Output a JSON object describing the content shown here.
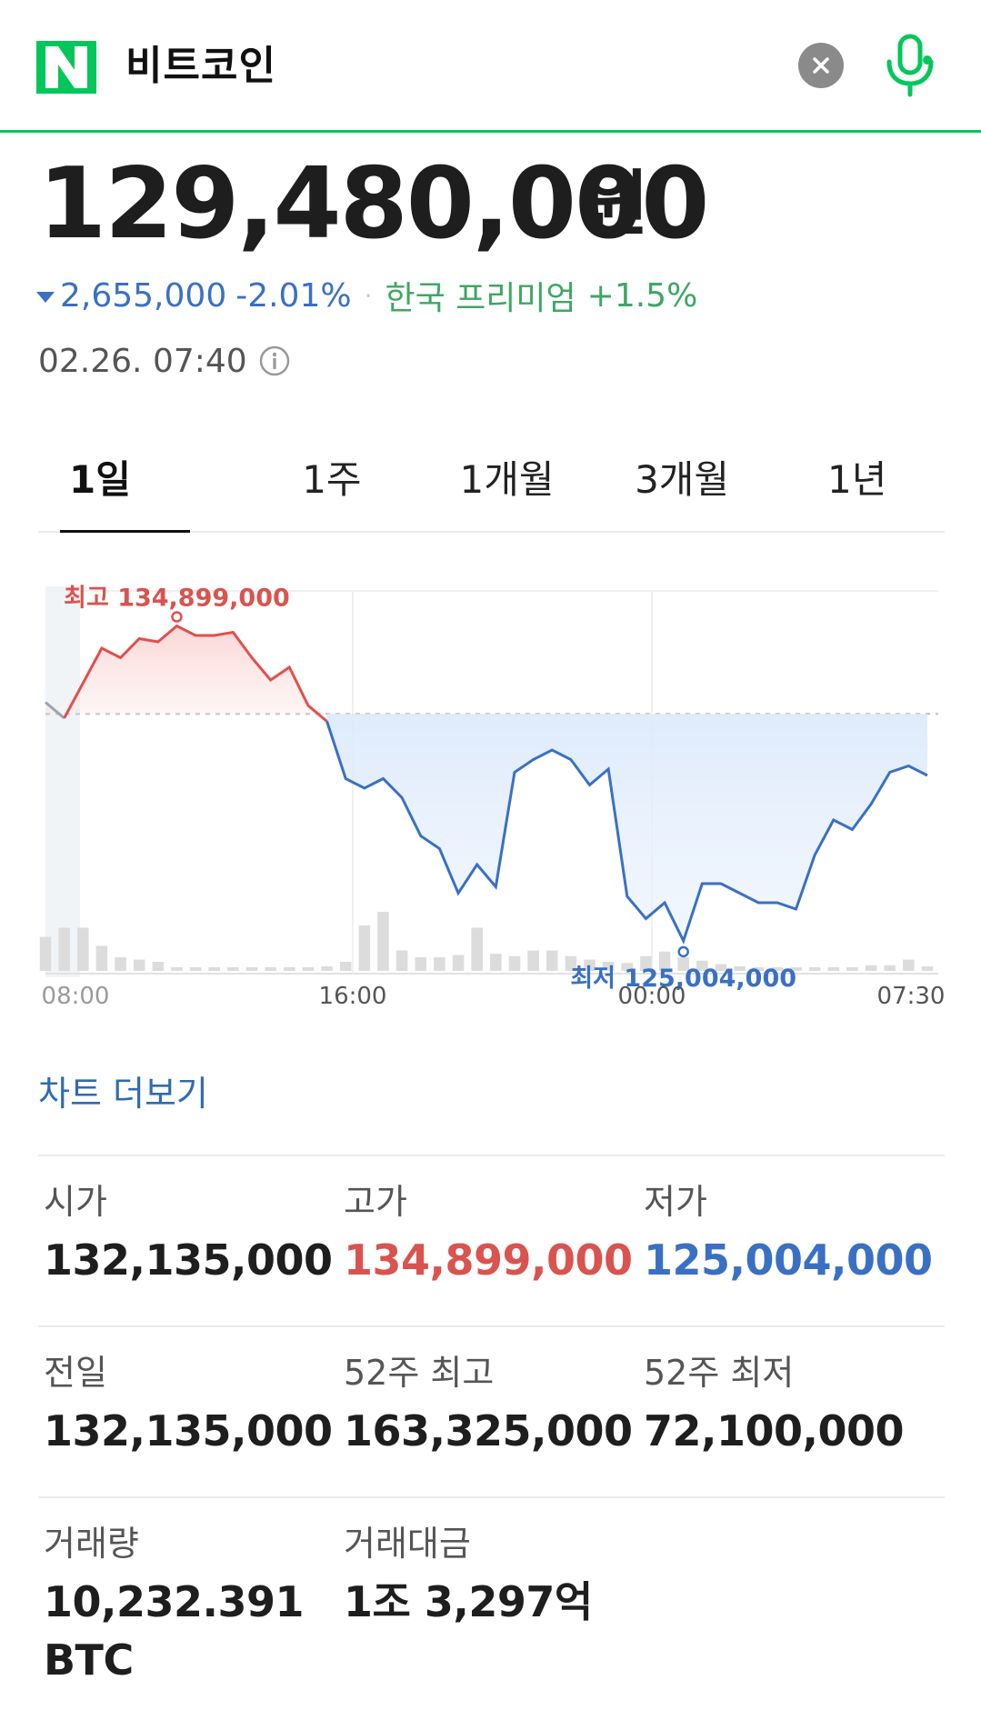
{
  "header": {
    "logo_letter": "N",
    "query": "비트코인",
    "icons": {
      "clear": "close-icon",
      "mic": "microphone-icon"
    },
    "accent_color": "#03c75a"
  },
  "quote": {
    "price": "129,480,000",
    "unit": "원",
    "change": "2,655,000",
    "change_pct": "-2.01%",
    "separator": "·",
    "premium_label": "한국 프리미엄",
    "premium_value": "+1.5%",
    "timestamp": "02.26. 07:40",
    "down_color": "#3a70c4",
    "up_color": "#d9534f"
  },
  "tabs": [
    {
      "label": "1일",
      "active": true
    },
    {
      "label": "1주",
      "active": false
    },
    {
      "label": "1개월",
      "active": false
    },
    {
      "label": "3개월",
      "active": false
    },
    {
      "label": "1년",
      "active": false
    }
  ],
  "chart": {
    "high_label": "최고 134,899,000",
    "low_label": "최저 125,004,000",
    "x_ticks": [
      "08:00",
      "16:00",
      "00:00",
      "07:30"
    ]
  },
  "chart_data": {
    "type": "line",
    "title": "",
    "x_ticks": [
      "08:00",
      "16:00",
      "00:00",
      "07:30"
    ],
    "reference_value": 132135000,
    "ylim": [
      124000000,
      136000000
    ],
    "high": 134899000,
    "low": 125004000,
    "series": [
      {
        "values": [
          132500000,
          132000000,
          133100000,
          134200000,
          133900000,
          134500000,
          134400000,
          134899000,
          134600000,
          134600000,
          134700000,
          133900000,
          133200000,
          133600000,
          132400000,
          131900000,
          130100000,
          129800000,
          130100000,
          129500000,
          128300000,
          127900000,
          126500000,
          127400000,
          126700000,
          130300000,
          130700000,
          131000000,
          130700000,
          129900000,
          130400000,
          126400000,
          125700000,
          126200000,
          125004000,
          126800000,
          126800000,
          126500000,
          126200000,
          126200000,
          126000000,
          127700000,
          128800000,
          128500000,
          129300000,
          130300000,
          130500000,
          130200000
        ]
      }
    ],
    "volume": [
      3.0,
      3.8,
      3.8,
      2.2,
      1.2,
      1.0,
      0.8,
      0.3,
      0.3,
      0.3,
      0.3,
      0.3,
      0.3,
      0.3,
      0.3,
      0.4,
      0.8,
      4.0,
      5.2,
      1.8,
      1.2,
      1.2,
      1.4,
      3.8,
      1.5,
      1.3,
      1.8,
      1.8,
      1.3,
      1.0,
      0.8,
      0.7,
      1.3,
      1.7,
      1.2,
      0.9,
      0.6,
      0.4,
      0.3,
      0.3,
      0.3,
      0.3,
      0.3,
      0.3,
      0.5,
      0.5,
      1.0,
      0.4
    ]
  },
  "more_link": "차트 더보기",
  "stats": [
    [
      {
        "label": "시가",
        "value": "132,135,000",
        "tone": ""
      },
      {
        "label": "고가",
        "value": "134,899,000",
        "tone": "red"
      },
      {
        "label": "저가",
        "value": "125,004,000",
        "tone": "blue"
      }
    ],
    [
      {
        "label": "전일",
        "value": "132,135,000",
        "tone": ""
      },
      {
        "label": "52주 최고",
        "value": "163,325,000",
        "tone": ""
      },
      {
        "label": "52주 최저",
        "value": "72,100,000",
        "tone": ""
      }
    ],
    [
      {
        "label": "거래량",
        "value": "10,232.391",
        "tone": "",
        "value2": "BTC"
      },
      {
        "label": "거래대금",
        "value": "1조 3,297억",
        "tone": ""
      }
    ]
  ]
}
